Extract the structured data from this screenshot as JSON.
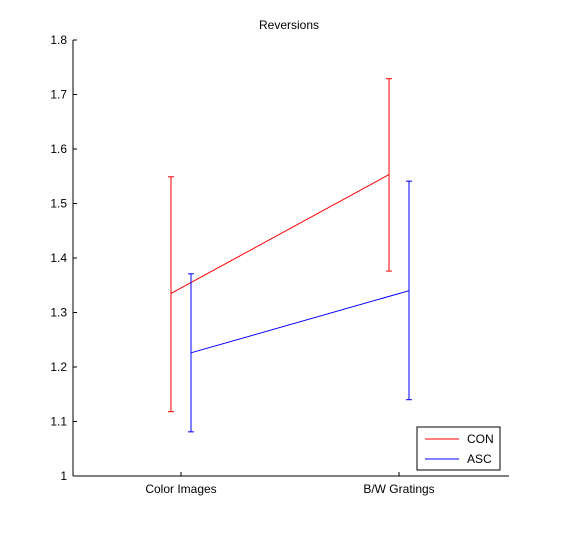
{
  "chart_data": {
    "type": "line",
    "title": "Reversions",
    "xlabel": "",
    "ylabel": "",
    "categories": [
      "Color Images",
      "B/W Gratings"
    ],
    "ylim": [
      1,
      1.8
    ],
    "yticks": [
      "1",
      "1.1",
      "1.2",
      "1.3",
      "1.4",
      "1.5",
      "1.6",
      "1.7",
      "1.8"
    ],
    "grid": false,
    "legend_position": "bottom-right",
    "series": [
      {
        "name": "CON",
        "color": "#ff0000",
        "values": [
          1.335,
          1.553
        ],
        "error_low": [
          1.118,
          1.376
        ],
        "error_high": [
          1.549,
          1.729
        ]
      },
      {
        "name": "ASC",
        "color": "#0000ff",
        "values": [
          1.226,
          1.34
        ],
        "error_low": [
          1.081,
          1.14
        ],
        "error_high": [
          1.371,
          1.541
        ]
      }
    ]
  }
}
